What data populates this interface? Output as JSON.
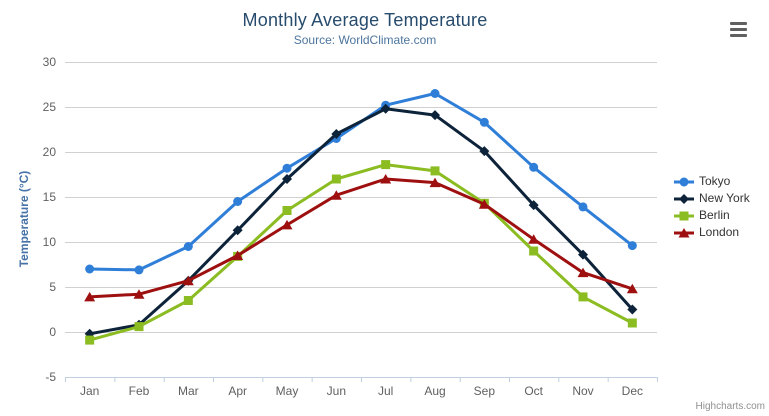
{
  "chart": {
    "title": "Monthly Average Temperature",
    "subtitle": "Source: WorldClimate.com",
    "y_axis_title": "Temperature (°C)",
    "credit": "Highcharts.com"
  },
  "chart_data": {
    "type": "line",
    "title": "Monthly Average Temperature",
    "subtitle": "Source: WorldClimate.com",
    "xlabel": "",
    "ylabel": "Temperature (°C)",
    "categories": [
      "Jan",
      "Feb",
      "Mar",
      "Apr",
      "May",
      "Jun",
      "Jul",
      "Aug",
      "Sep",
      "Oct",
      "Nov",
      "Dec"
    ],
    "ylim": [
      -5,
      30
    ],
    "y_ticks": [
      -5,
      0,
      5,
      10,
      15,
      20,
      25,
      30
    ],
    "grid": true,
    "legend_position": "right",
    "series": [
      {
        "name": "Tokyo",
        "color": "#2f7ed8",
        "marker": "circle",
        "values": [
          7.0,
          6.9,
          9.5,
          14.5,
          18.2,
          21.5,
          25.2,
          26.5,
          23.3,
          18.3,
          13.9,
          9.6
        ]
      },
      {
        "name": "New York",
        "color": "#0d233a",
        "marker": "diamond",
        "values": [
          -0.2,
          0.8,
          5.7,
          11.3,
          17.0,
          22.0,
          24.8,
          24.1,
          20.1,
          14.1,
          8.6,
          2.5
        ]
      },
      {
        "name": "Berlin",
        "color": "#8bbc21",
        "marker": "square",
        "values": [
          -0.9,
          0.6,
          3.5,
          8.4,
          13.5,
          17.0,
          18.6,
          17.9,
          14.3,
          9.0,
          3.9,
          1.0
        ]
      },
      {
        "name": "London",
        "color": "#9e1010",
        "marker": "triangle",
        "values": [
          3.9,
          4.2,
          5.7,
          8.5,
          11.9,
          15.2,
          17.0,
          16.6,
          14.2,
          10.3,
          6.6,
          4.8
        ]
      }
    ]
  },
  "colors": {
    "grid": "#d0d0d0",
    "axis_line": "#c0d0e0",
    "tick_label": "#606060",
    "title": "#274b6d",
    "subtitle": "#4d759e",
    "axis_title": "#4572a7",
    "legend_text": "#333333",
    "credit": "#909090"
  }
}
